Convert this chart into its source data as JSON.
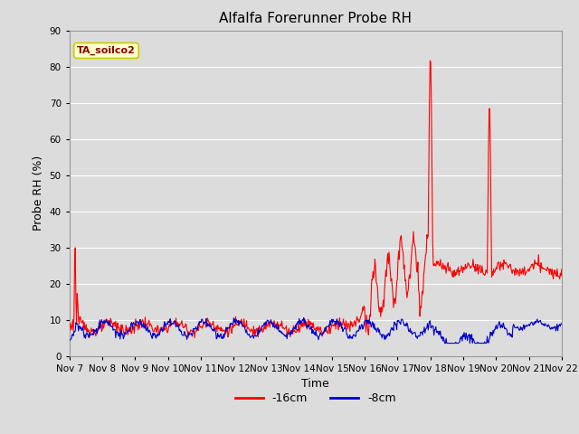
{
  "title": "Alfalfa Forerunner Probe RH",
  "ylabel": "Probe RH (%)",
  "xlabel": "Time",
  "annotation": "TA_soilco2",
  "ylim": [
    0,
    90
  ],
  "yticks": [
    0,
    10,
    20,
    30,
    40,
    50,
    60,
    70,
    80,
    90
  ],
  "legend_labels": [
    "-16cm",
    "-8cm"
  ],
  "red_color": "#ff0000",
  "blue_color": "#0000cc",
  "background_color": "#dcdcdc",
  "grid_color": "#ffffff",
  "title_fontsize": 11,
  "axis_label_fontsize": 9,
  "tick_fontsize": 7.5,
  "annotation_fontsize": 8,
  "annotation_color": "#8b0000",
  "annotation_bg": "#ffffcc",
  "annotation_edge": "#cccc00"
}
